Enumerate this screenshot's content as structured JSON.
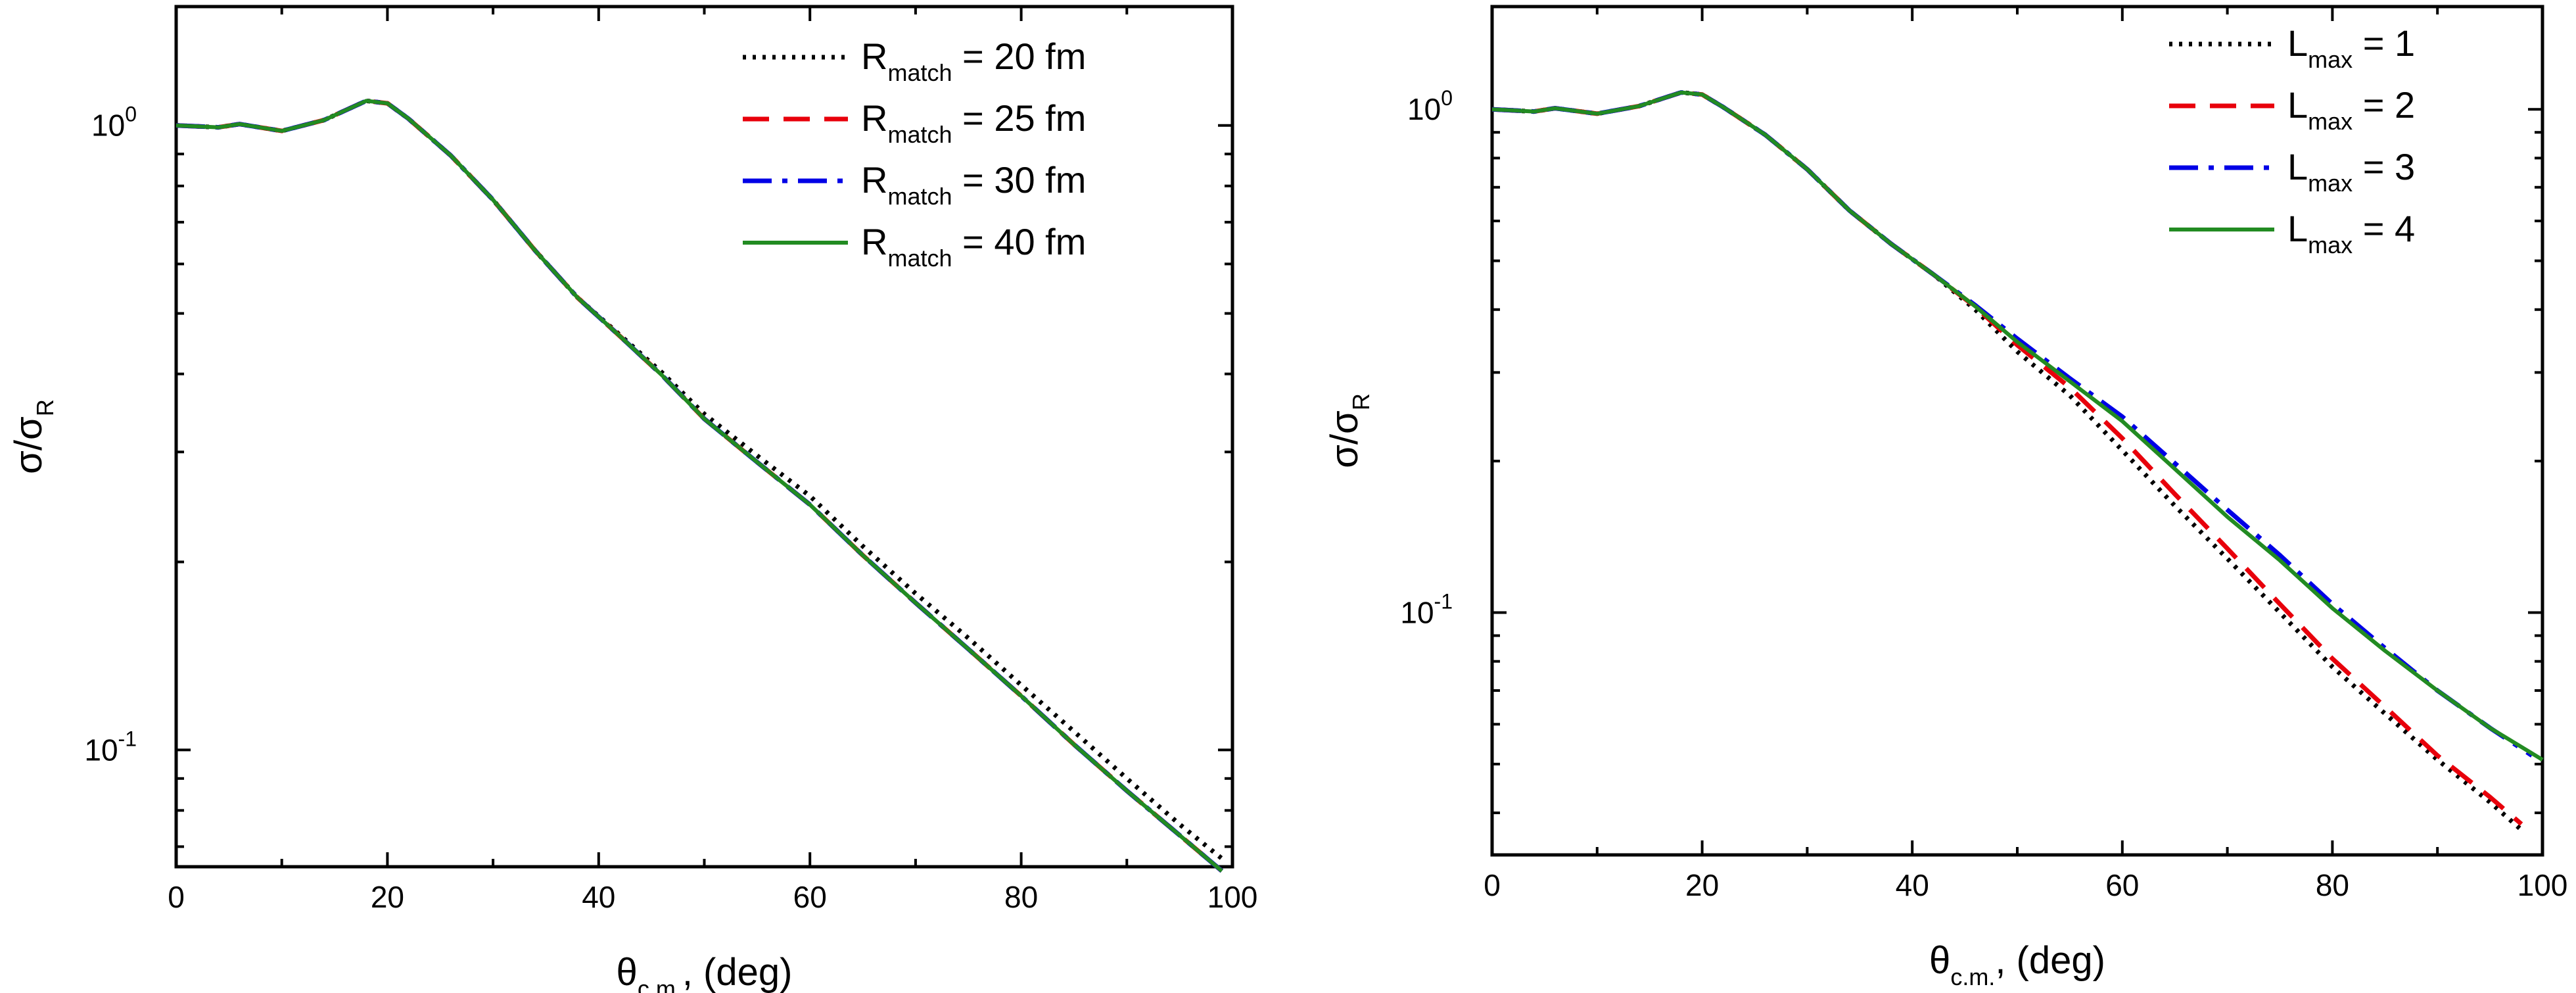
{
  "chart_data": [
    {
      "type": "line",
      "xlabel": {
        "symbol": "θ",
        "subscript": "c.m.",
        "rest": ", (deg)"
      },
      "ylabel": {
        "prefix": "σ/σ",
        "subscript": "R"
      },
      "xlim": [
        0,
        100
      ],
      "ylim": [
        0.065,
        1.55
      ],
      "yscale": "log",
      "grid": false,
      "legend_position": "top-right",
      "x_ticks": [
        "0",
        "20",
        "40",
        "60",
        "80",
        "100"
      ],
      "y_ticks": [
        {
          "value": 1.0,
          "base": "10",
          "exp": "0"
        },
        {
          "value": 0.1,
          "base": "10",
          "exp": "-1"
        }
      ],
      "series": [
        {
          "name": "R",
          "name_sub": "match",
          "name_rest": " = 20 fm",
          "color": "#000000",
          "dash": "dotted",
          "x": [
            0,
            4,
            6,
            10,
            14,
            18,
            20,
            22,
            26,
            30,
            34,
            38,
            42,
            46,
            50,
            55,
            60,
            65,
            70,
            75,
            80,
            85,
            90,
            95,
            99
          ],
          "y": [
            1.0,
            0.993,
            1.005,
            0.98,
            1.02,
            1.095,
            1.085,
            1.025,
            0.895,
            0.76,
            0.63,
            0.53,
            0.462,
            0.402,
            0.345,
            0.296,
            0.255,
            0.212,
            0.178,
            0.151,
            0.127,
            0.107,
            0.09,
            0.076,
            0.067
          ]
        },
        {
          "name": "R",
          "name_sub": "match",
          "name_rest": " = 25 fm",
          "color": "#e8000b",
          "dash": "dashed",
          "x": [
            0,
            4,
            6,
            10,
            14,
            18,
            20,
            22,
            26,
            30,
            34,
            38,
            42,
            46,
            50,
            55,
            60,
            65,
            70,
            75,
            80,
            85,
            90,
            95,
            99
          ],
          "y": [
            1.0,
            0.993,
            1.005,
            0.98,
            1.02,
            1.095,
            1.085,
            1.025,
            0.895,
            0.76,
            0.63,
            0.53,
            0.46,
            0.398,
            0.339,
            0.289,
            0.247,
            0.205,
            0.172,
            0.145,
            0.122,
            0.102,
            0.086,
            0.073,
            0.064
          ]
        },
        {
          "name": "R",
          "name_sub": "match",
          "name_rest": " = 30 fm",
          "color": "#0000e6",
          "dash": "dashdot",
          "x": [
            0,
            4,
            6,
            10,
            14,
            18,
            20,
            22,
            26,
            30,
            34,
            38,
            42,
            46,
            50,
            55,
            60,
            65,
            70,
            75,
            80,
            85,
            90,
            95,
            99
          ],
          "y": [
            1.0,
            0.993,
            1.005,
            0.98,
            1.02,
            1.095,
            1.085,
            1.025,
            0.895,
            0.76,
            0.63,
            0.53,
            0.46,
            0.398,
            0.339,
            0.289,
            0.247,
            0.205,
            0.172,
            0.145,
            0.122,
            0.102,
            0.086,
            0.073,
            0.064
          ]
        },
        {
          "name": "R",
          "name_sub": "match",
          "name_rest": " = 40 fm",
          "color": "#228b22",
          "dash": "solid",
          "x": [
            0,
            4,
            6,
            10,
            14,
            18,
            20,
            22,
            26,
            30,
            34,
            38,
            42,
            46,
            50,
            55,
            60,
            65,
            70,
            75,
            80,
            85,
            90,
            95,
            99
          ],
          "y": [
            1.0,
            0.993,
            1.005,
            0.98,
            1.02,
            1.095,
            1.085,
            1.025,
            0.895,
            0.76,
            0.63,
            0.53,
            0.46,
            0.398,
            0.339,
            0.289,
            0.247,
            0.205,
            0.172,
            0.145,
            0.122,
            0.102,
            0.086,
            0.073,
            0.064
          ]
        }
      ]
    },
    {
      "type": "line",
      "xlabel": {
        "symbol": "θ",
        "subscript": "c.m.",
        "rest": ", (deg)"
      },
      "ylabel": {
        "prefix": "σ/σ",
        "subscript": "R"
      },
      "xlim": [
        0,
        100
      ],
      "ylim": [
        0.033,
        1.6
      ],
      "yscale": "log",
      "grid": false,
      "legend_position": "top-right",
      "x_ticks": [
        "0",
        "20",
        "40",
        "60",
        "80",
        "100"
      ],
      "y_ticks": [
        {
          "value": 1.0,
          "base": "10",
          "exp": "0"
        },
        {
          "value": 0.1,
          "base": "10",
          "exp": "-1"
        }
      ],
      "series": [
        {
          "name": "L",
          "name_sub": "max",
          "name_rest": " = 1",
          "color": "#000000",
          "dash": "dotted",
          "x": [
            0,
            4,
            6,
            10,
            14,
            18,
            20,
            22,
            26,
            30,
            34,
            38,
            42,
            46,
            50,
            55,
            60,
            65,
            70,
            75,
            80,
            85,
            90,
            95,
            98
          ],
          "y": [
            1.0,
            0.99,
            1.005,
            0.98,
            1.015,
            1.08,
            1.07,
            1.01,
            0.89,
            0.76,
            0.63,
            0.54,
            0.47,
            0.4,
            0.33,
            0.27,
            0.21,
            0.163,
            0.128,
            0.1,
            0.078,
            0.063,
            0.051,
            0.042,
            0.037
          ]
        },
        {
          "name": "L",
          "name_sub": "max",
          "name_rest": " = 2",
          "color": "#e8000b",
          "dash": "dashed",
          "x": [
            0,
            4,
            6,
            10,
            14,
            18,
            20,
            22,
            26,
            30,
            34,
            38,
            42,
            46,
            50,
            55,
            60,
            65,
            70,
            75,
            80,
            85,
            90,
            95,
            98
          ],
          "y": [
            1.0,
            0.99,
            1.005,
            0.98,
            1.015,
            1.08,
            1.07,
            1.01,
            0.89,
            0.76,
            0.63,
            0.54,
            0.47,
            0.405,
            0.34,
            0.28,
            0.222,
            0.172,
            0.134,
            0.104,
            0.081,
            0.065,
            0.052,
            0.043,
            0.038
          ]
        },
        {
          "name": "L",
          "name_sub": "max",
          "name_rest": " = 3",
          "color": "#0000e6",
          "dash": "dashdot",
          "x": [
            0,
            4,
            6,
            10,
            14,
            18,
            20,
            22,
            26,
            30,
            34,
            38,
            42,
            46,
            50,
            55,
            60,
            65,
            70,
            75,
            80,
            85,
            90,
            95,
            99
          ],
          "y": [
            1.0,
            0.99,
            1.005,
            0.98,
            1.015,
            1.08,
            1.07,
            1.01,
            0.89,
            0.76,
            0.63,
            0.54,
            0.47,
            0.408,
            0.35,
            0.292,
            0.245,
            0.198,
            0.16,
            0.13,
            0.104,
            0.085,
            0.07,
            0.059,
            0.052
          ]
        },
        {
          "name": "L",
          "name_sub": "max",
          "name_rest": " = 4",
          "color": "#228b22",
          "dash": "solid",
          "x": [
            0,
            4,
            6,
            10,
            14,
            18,
            20,
            22,
            26,
            30,
            34,
            38,
            42,
            46,
            50,
            55,
            60,
            65,
            70,
            75,
            80,
            85,
            90,
            95,
            100
          ],
          "y": [
            1.0,
            0.99,
            1.005,
            0.98,
            1.015,
            1.08,
            1.07,
            1.01,
            0.89,
            0.76,
            0.63,
            0.54,
            0.47,
            0.406,
            0.345,
            0.288,
            0.24,
            0.193,
            0.155,
            0.127,
            0.102,
            0.084,
            0.07,
            0.059,
            0.051
          ]
        }
      ]
    }
  ]
}
